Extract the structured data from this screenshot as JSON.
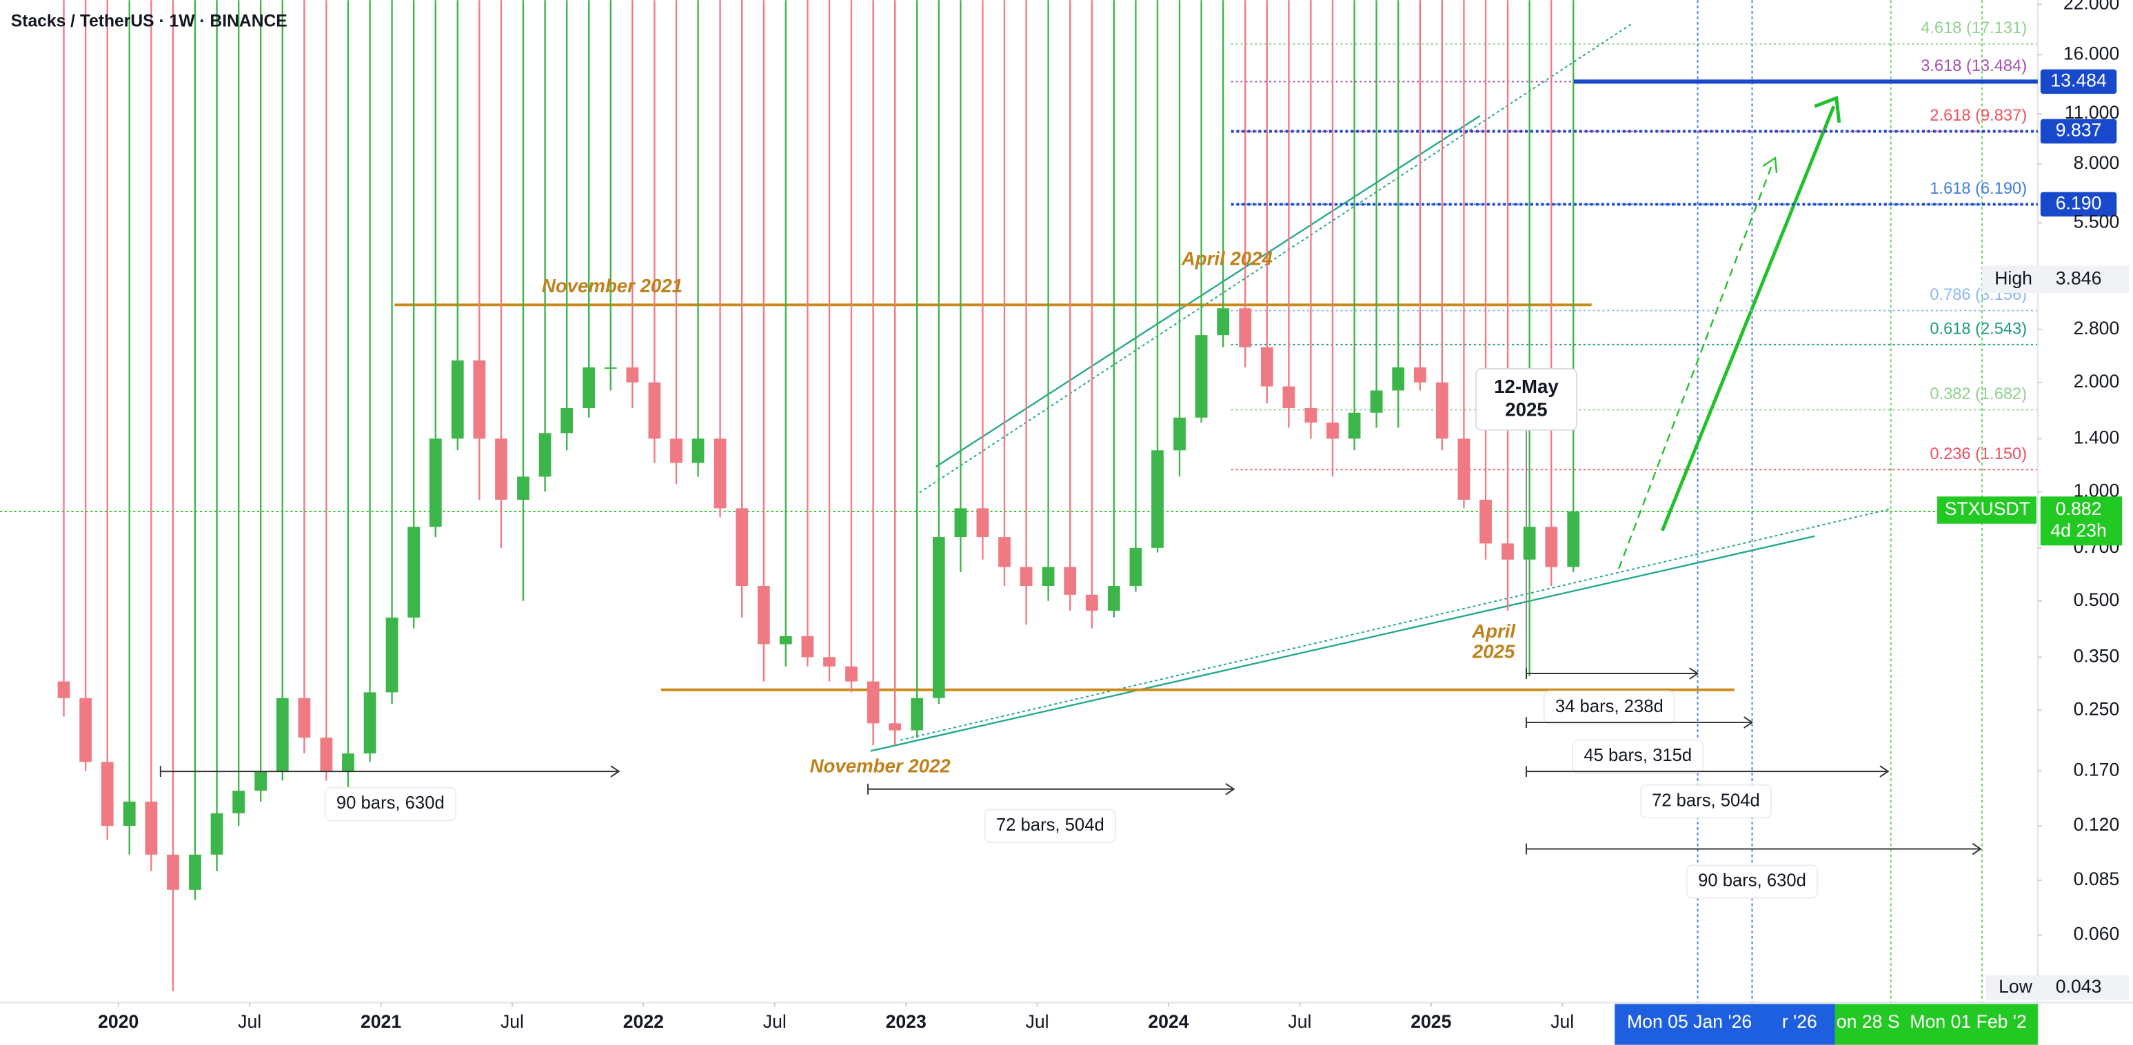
{
  "chart_data": {
    "type": "candlestick",
    "title": "Stacks / TetherUS · 1W · BINANCE",
    "log_scale": true,
    "up_color": "#3cb54a",
    "down_color": "#f07a84",
    "x": [
      2019.792,
      2019.875,
      2019.958,
      2020.042,
      2020.125,
      2020.208,
      2020.292,
      2020.375,
      2020.458,
      2020.542,
      2020.625,
      2020.708,
      2020.792,
      2020.875,
      2020.958,
      2021.042,
      2021.125,
      2021.208,
      2021.292,
      2021.375,
      2021.458,
      2021.542,
      2021.625,
      2021.708,
      2021.792,
      2021.875,
      2021.958,
      2022.042,
      2022.125,
      2022.208,
      2022.292,
      2022.375,
      2022.458,
      2022.542,
      2022.625,
      2022.708,
      2022.792,
      2022.875,
      2022.958,
      2023.042,
      2023.125,
      2023.208,
      2023.292,
      2023.375,
      2023.458,
      2023.542,
      2023.625,
      2023.708,
      2023.792,
      2023.875,
      2023.958,
      2024.042,
      2024.125,
      2024.208,
      2024.292,
      2024.375,
      2024.458,
      2024.542,
      2024.625,
      2024.708,
      2024.792,
      2024.875,
      2024.958,
      2025.042,
      2025.125,
      2025.208,
      2025.292,
      2025.375,
      2025.458,
      2025.542
    ],
    "open": [
      0.3,
      0.27,
      0.18,
      0.12,
      0.14,
      0.1,
      0.08,
      0.1,
      0.13,
      0.15,
      0.17,
      0.27,
      0.21,
      0.17,
      0.19,
      0.28,
      0.45,
      0.8,
      1.4,
      2.3,
      1.4,
      0.95,
      1.1,
      1.45,
      1.7,
      2.2,
      2.2,
      2.0,
      1.4,
      1.2,
      1.4,
      0.9,
      0.55,
      0.38,
      0.4,
      0.35,
      0.33,
      0.3,
      0.23,
      0.22,
      0.27,
      0.75,
      0.9,
      0.75,
      0.62,
      0.55,
      0.62,
      0.52,
      0.47,
      0.55,
      0.7,
      1.3,
      1.6,
      2.7,
      3.2,
      2.5,
      1.95,
      1.7,
      1.55,
      1.4,
      1.65,
      1.9,
      2.2,
      2.0,
      1.4,
      0.95,
      0.72,
      0.65,
      0.8,
      0.62
    ],
    "high": {
      "name": "High",
      "label": "3.846",
      "value": 3.846
    },
    "low": [
      0.24,
      0.17,
      0.11,
      0.1,
      0.09,
      0.042,
      0.075,
      0.09,
      0.12,
      0.14,
      0.16,
      0.19,
      0.16,
      0.15,
      0.18,
      0.26,
      0.42,
      0.75,
      1.3,
      0.95,
      0.7,
      0.5,
      1.0,
      1.3,
      1.6,
      1.9,
      1.7,
      1.2,
      1.05,
      1.1,
      0.85,
      0.45,
      0.3,
      0.33,
      0.33,
      0.3,
      0.28,
      0.2,
      0.2,
      0.21,
      0.26,
      0.6,
      0.65,
      0.55,
      0.43,
      0.5,
      0.47,
      0.42,
      0.45,
      0.53,
      0.68,
      1.1,
      1.55,
      2.5,
      2.2,
      1.75,
      1.5,
      1.4,
      1.1,
      1.3,
      1.5,
      1.5,
      1.9,
      1.3,
      0.9,
      0.65,
      0.47,
      0.31,
      0.55,
      0.6
    ],
    "close": [
      0.27,
      0.18,
      0.12,
      0.14,
      0.1,
      0.08,
      0.1,
      0.13,
      0.15,
      0.17,
      0.27,
      0.21,
      0.17,
      0.19,
      0.28,
      0.45,
      0.8,
      1.4,
      2.3,
      1.4,
      0.95,
      1.1,
      1.45,
      1.7,
      2.2,
      2.2,
      2.0,
      1.4,
      1.2,
      1.4,
      0.9,
      0.55,
      0.38,
      0.4,
      0.35,
      0.33,
      0.3,
      0.23,
      0.22,
      0.27,
      0.75,
      0.9,
      0.75,
      0.62,
      0.55,
      0.62,
      0.52,
      0.47,
      0.55,
      0.7,
      1.3,
      1.6,
      2.7,
      3.2,
      2.5,
      1.95,
      1.7,
      1.55,
      1.4,
      1.65,
      1.9,
      2.2,
      2.0,
      1.4,
      0.95,
      0.72,
      0.65,
      0.8,
      0.62,
      0.882
    ],
    "xlim": [
      2019.549,
      2027.311
    ],
    "ylim": [
      0.0391,
      22.6
    ],
    "xticks": [
      {
        "value": 2020,
        "label": "2020"
      },
      {
        "value": 2020.5,
        "label": "Jul"
      },
      {
        "value": 2021,
        "label": "2021"
      },
      {
        "value": 2021.5,
        "label": "Jul"
      },
      {
        "value": 2022,
        "label": "2022"
      },
      {
        "value": 2022.5,
        "label": "Jul"
      },
      {
        "value": 2023,
        "label": "2023"
      },
      {
        "value": 2023.5,
        "label": "Jul"
      },
      {
        "value": 2024,
        "label": "2024"
      },
      {
        "value": 2024.5,
        "label": "Jul"
      },
      {
        "value": 2025,
        "label": "2025"
      },
      {
        "value": 2025.5,
        "label": "Jul"
      }
    ],
    "yticks": [
      {
        "value": 22,
        "label": "22.000"
      },
      {
        "value": 16,
        "label": "16.000"
      },
      {
        "value": 11,
        "label": "11.000"
      },
      {
        "value": 8,
        "label": "8.000"
      },
      {
        "value": 5.5,
        "label": "5.500"
      },
      {
        "value": 2.8,
        "label": "2.800"
      },
      {
        "value": 2,
        "label": "2.000"
      },
      {
        "value": 1.4,
        "label": "1.400"
      },
      {
        "value": 1,
        "label": "1.000"
      },
      {
        "value": 0.7,
        "label": "0.700"
      },
      {
        "value": 0.5,
        "label": "0.500"
      },
      {
        "value": 0.35,
        "label": "0.350"
      },
      {
        "value": 0.25,
        "label": "0.250"
      },
      {
        "value": 0.17,
        "label": "0.170"
      },
      {
        "value": 0.12,
        "label": "0.120"
      },
      {
        "value": 0.085,
        "label": "0.085"
      },
      {
        "value": 0.06,
        "label": "0.060"
      }
    ],
    "fib_levels": [
      {
        "label": "4.618 (17.131)",
        "value": 17.131,
        "color": "#8fd18f"
      },
      {
        "label": "3.618 (13.484)",
        "value": 13.484,
        "color": "#a44fb0"
      },
      {
        "label": "2.618 (9.837)",
        "value": 9.837,
        "color": "#f05060"
      },
      {
        "label": "1.618 (6.190)",
        "value": 6.19,
        "color": "#3f7de0"
      },
      {
        "label": "0.786 (3.156)",
        "value": 3.156,
        "color": "#8db8ee"
      },
      {
        "label": "0.618 (2.543)",
        "value": 2.543,
        "color": "#1c9a80"
      },
      {
        "label": "0.382 (1.682)",
        "value": 1.682,
        "color": "#8fd18f"
      },
      {
        "label": "0.236 (1.150)",
        "value": 1.15,
        "color": "#f05060"
      }
    ],
    "price_badges": [
      {
        "label": "13.484",
        "value": 13.484,
        "color": "#1848cc"
      },
      {
        "label": "9.837",
        "value": 9.837,
        "color": "#1848cc"
      },
      {
        "label": "6.190",
        "value": 6.19,
        "color": "#1848cc"
      }
    ],
    "low_badge": {
      "name": "Low",
      "label": "0.043",
      "value": 0.043
    },
    "last": {
      "name": "STXUSDT",
      "label": "0.882",
      "value": 0.882,
      "countdown": "4d 23h",
      "color": "#22c922"
    },
    "annotations": [
      [
        "November 2021"
      ],
      [
        "April 2024"
      ],
      [
        "November 2022"
      ],
      [
        "April",
        "2025"
      ]
    ],
    "callout": [
      "12-May",
      "2025"
    ],
    "measurements": [
      "90 bars, 630d",
      "72 bars, 504d",
      "34 bars, 238d",
      "45 bars, 315d",
      "72 bars, 504d",
      "90 bars, 630d"
    ],
    "time_badges": [
      "Mon 05 Jan '26",
      "r '26",
      "on 28 S",
      "Mon 01 Feb '2"
    ]
  }
}
